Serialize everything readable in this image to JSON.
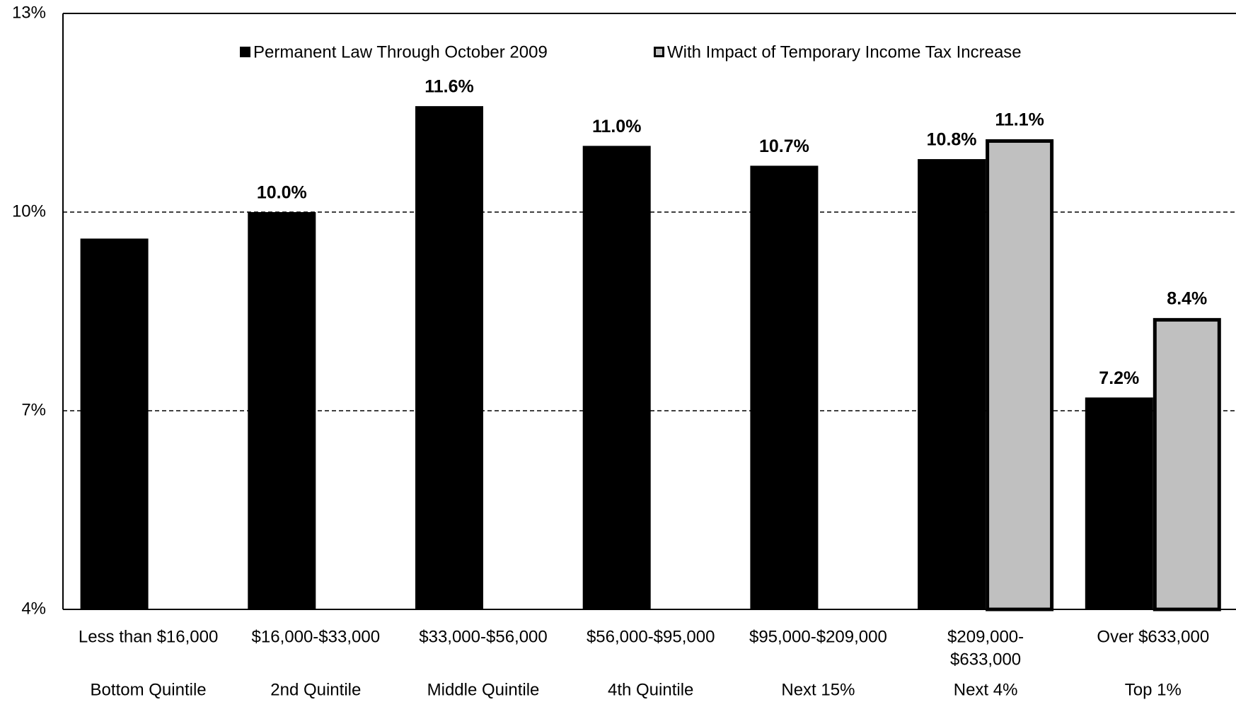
{
  "chart_data": {
    "type": "bar",
    "categories": [
      [
        "Less than $16,000"
      ],
      [
        "$16,000-$33,000"
      ],
      [
        "$33,000-$56,000"
      ],
      [
        "$56,000-$95,000"
      ],
      [
        "$95,000-$209,000"
      ],
      [
        "$209,000-",
        "$633,000"
      ],
      [
        "Over $633,000"
      ]
    ],
    "groups": [
      "Bottom Quintile",
      "2nd Quintile",
      "Middle Quintile",
      "4th Quintile",
      "Next 15%",
      "Next 4%",
      "Top 1%"
    ],
    "series": [
      {
        "name": "Permanent Law Through October 2009",
        "color": "#000000",
        "values": [
          9.6,
          10.0,
          11.6,
          11.0,
          10.7,
          10.8,
          7.2
        ],
        "value_labels": [
          null,
          "10.0%",
          "11.6%",
          "11.0%",
          "10.7%",
          "10.8%",
          "7.2%"
        ]
      },
      {
        "name": "With Impact of Temporary Income Tax Increase",
        "color": "#c0c0c0",
        "values": [
          null,
          null,
          null,
          null,
          null,
          11.1,
          8.4
        ],
        "value_labels": [
          null,
          null,
          null,
          null,
          null,
          "11.1%",
          "8.4%"
        ]
      }
    ],
    "ylim": [
      4,
      13
    ],
    "yticks": [
      {
        "value": 4,
        "label": "4%"
      },
      {
        "value": 7,
        "label": "7%"
      },
      {
        "value": 10,
        "label": "10%"
      },
      {
        "value": 13,
        "label": "13%"
      }
    ],
    "grid": true,
    "legend": "top"
  }
}
